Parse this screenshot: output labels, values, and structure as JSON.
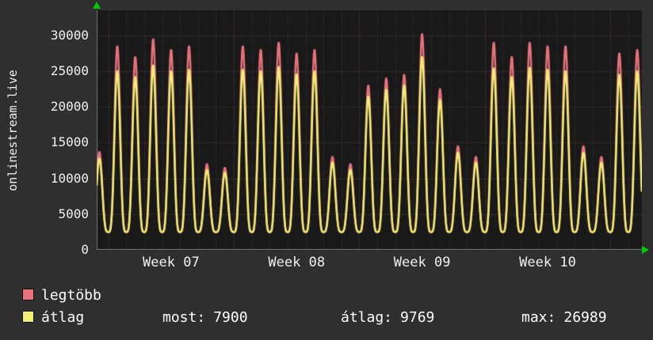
{
  "panel": {
    "source_label": "onlinestream.live"
  },
  "colors": {
    "background": "#2f2f2f",
    "plot_bg": "#191919",
    "grid_day": "#3a3a3a",
    "grid_major": "#5c4747",
    "axis": "#777777",
    "arrow": "#00cc00",
    "text": "#f0f0f0",
    "legtobb": "#e8727b",
    "atlag": "#f2ee73"
  },
  "chart_data": {
    "type": "line",
    "title": "",
    "ylabel": "onlinestream.live",
    "xlabel": "",
    "ylim": [
      0,
      33500
    ],
    "yticks": [
      0,
      5000,
      10000,
      15000,
      20000,
      25000,
      30000
    ],
    "week_labels": [
      "Week 07",
      "Week 08",
      "Week 09",
      "Week 10"
    ],
    "week_start_day_index": [
      1,
      8,
      15,
      22,
      29
    ],
    "week_label_center_offset_days": 3.5,
    "base_value": 2500,
    "start_fraction": 0.35,
    "end_fraction": 0.76,
    "grid": true,
    "legend_position": "bottom-left",
    "series": [
      {
        "name": "legtöbb",
        "color": "#e8727b",
        "daily_peaks": [
          13700,
          28500,
          27000,
          29500,
          28000,
          28500,
          12000,
          11500,
          28500,
          28000,
          29000,
          27500,
          28000,
          13000,
          12000,
          23000,
          24000,
          24500,
          30200,
          22500,
          14500,
          13000,
          29000,
          27000,
          29000,
          28500,
          28500,
          14500,
          13000,
          27500,
          28000
        ]
      },
      {
        "name": "átlag",
        "color": "#f2ee73",
        "daily_peaks": [
          12800,
          25000,
          24200,
          25800,
          25000,
          25200,
          11200,
          10800,
          25200,
          25000,
          25600,
          24600,
          25000,
          12200,
          11200,
          21500,
          22400,
          23000,
          27000,
          21000,
          13600,
          12200,
          25400,
          24200,
          25500,
          25200,
          25000,
          13600,
          12200,
          24500,
          25000
        ]
      }
    ]
  },
  "legend": {
    "items": [
      {
        "label": "legtöbb",
        "color": "#e8727b"
      },
      {
        "label": "átlag",
        "color": "#f2ee73"
      }
    ]
  },
  "stats": {
    "most_label": "most:",
    "most_value": "7900",
    "atlag_label": "átlag:",
    "atlag_value": "9769",
    "max_label": "max:",
    "max_value": "26989"
  }
}
